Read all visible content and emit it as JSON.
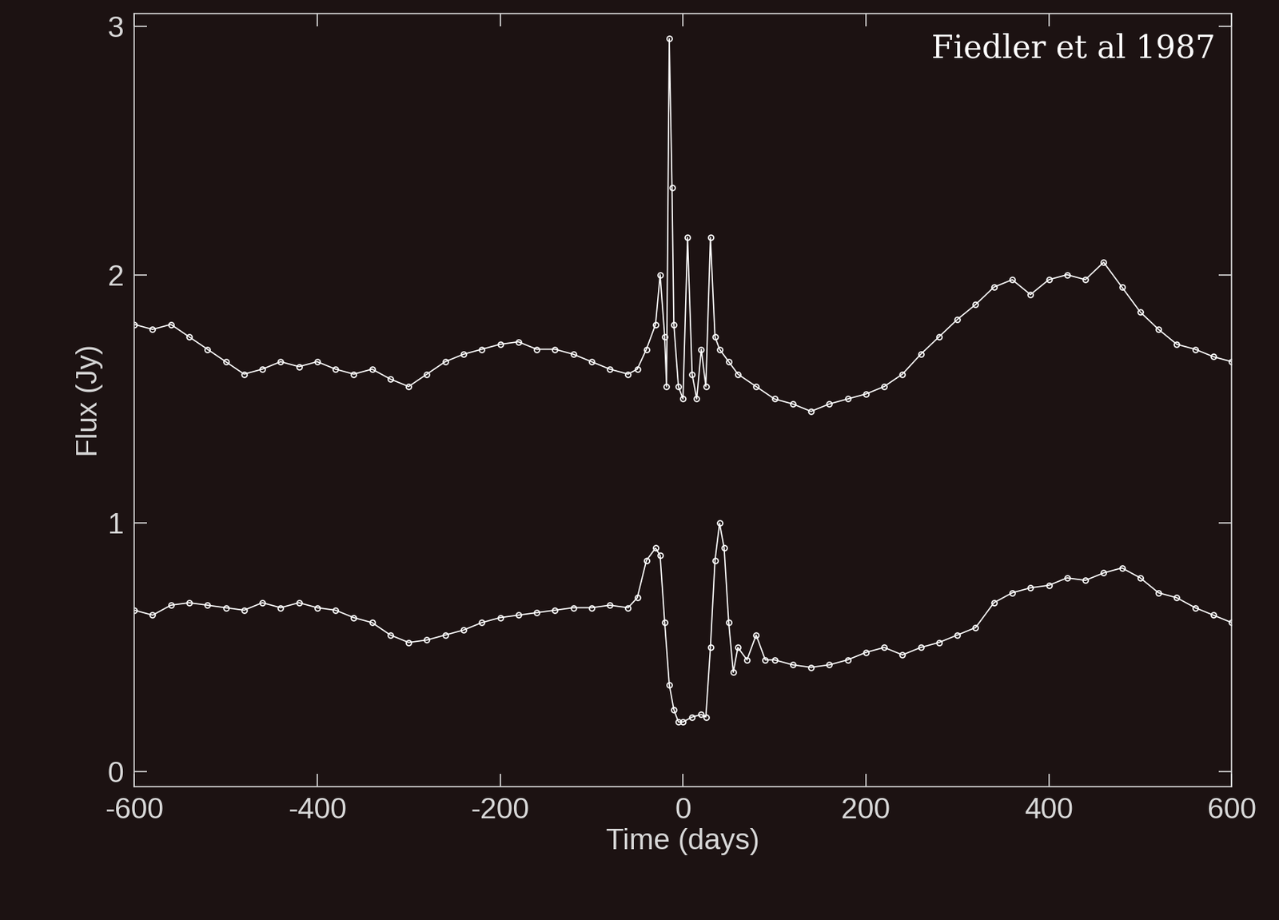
{
  "chart_data": {
    "type": "line",
    "annotation": "Fiedler et al 1987",
    "x_label": "Time (days)",
    "y_label": "Flux (Jy)",
    "xlim": [
      -600,
      600
    ],
    "ylim": [
      -0.06,
      3.05
    ],
    "xticks": [
      -600,
      -400,
      -200,
      0,
      200,
      400,
      600
    ],
    "yticks": [
      0,
      1,
      2,
      3
    ],
    "grid": false,
    "marker": "o",
    "line_style": "solid",
    "series": [
      {
        "color": "#ffffff",
        "x": [
          -600,
          -580,
          -560,
          -540,
          -520,
          -500,
          -480,
          -460,
          -440,
          -420,
          -400,
          -380,
          -360,
          -340,
          -320,
          -300,
          -280,
          -260,
          -240,
          -220,
          -200,
          -180,
          -160,
          -140,
          -120,
          -100,
          -80,
          -60,
          -50,
          -40,
          -30,
          -25,
          -20,
          -18,
          -15,
          -12,
          -10,
          -5,
          0,
          5,
          10,
          15,
          20,
          25,
          30,
          35,
          40,
          50,
          60,
          80,
          100,
          120,
          140,
          160,
          180,
          200,
          220,
          240,
          260,
          280,
          300,
          320,
          340,
          360,
          380,
          400,
          420,
          440,
          460,
          480,
          500,
          520,
          540,
          560,
          580,
          600
        ],
        "values": [
          1.8,
          1.78,
          1.8,
          1.75,
          1.7,
          1.65,
          1.6,
          1.62,
          1.65,
          1.63,
          1.65,
          1.62,
          1.6,
          1.62,
          1.58,
          1.55,
          1.6,
          1.65,
          1.68,
          1.7,
          1.72,
          1.73,
          1.7,
          1.7,
          1.68,
          1.65,
          1.62,
          1.6,
          1.62,
          1.7,
          1.8,
          2.0,
          1.75,
          1.55,
          2.95,
          2.35,
          1.8,
          1.55,
          1.5,
          2.15,
          1.6,
          1.5,
          1.7,
          1.55,
          2.15,
          1.75,
          1.7,
          1.65,
          1.6,
          1.55,
          1.5,
          1.48,
          1.45,
          1.48,
          1.5,
          1.52,
          1.55,
          1.6,
          1.68,
          1.75,
          1.82,
          1.88,
          1.95,
          1.98,
          1.92,
          1.98,
          2.0,
          1.98,
          2.05,
          1.95,
          1.85,
          1.78,
          1.72,
          1.7,
          1.67,
          1.65
        ]
      },
      {
        "color": "#ffffff",
        "x": [
          -600,
          -580,
          -560,
          -540,
          -520,
          -500,
          -480,
          -460,
          -440,
          -420,
          -400,
          -380,
          -360,
          -340,
          -320,
          -300,
          -280,
          -260,
          -240,
          -220,
          -200,
          -180,
          -160,
          -140,
          -120,
          -100,
          -80,
          -60,
          -50,
          -40,
          -30,
          -25,
          -20,
          -15,
          -10,
          -5,
          0,
          10,
          20,
          25,
          30,
          35,
          40,
          45,
          50,
          55,
          60,
          70,
          80,
          90,
          100,
          120,
          140,
          160,
          180,
          200,
          220,
          240,
          260,
          280,
          300,
          320,
          340,
          360,
          380,
          400,
          420,
          440,
          460,
          480,
          500,
          520,
          540,
          560,
          580,
          600
        ],
        "values": [
          0.65,
          0.63,
          0.67,
          0.68,
          0.67,
          0.66,
          0.65,
          0.68,
          0.66,
          0.68,
          0.66,
          0.65,
          0.62,
          0.6,
          0.55,
          0.52,
          0.53,
          0.55,
          0.57,
          0.6,
          0.62,
          0.63,
          0.64,
          0.65,
          0.66,
          0.66,
          0.67,
          0.66,
          0.7,
          0.85,
          0.9,
          0.87,
          0.6,
          0.35,
          0.25,
          0.2,
          0.2,
          0.22,
          0.23,
          0.22,
          0.5,
          0.85,
          1.0,
          0.9,
          0.6,
          0.4,
          0.5,
          0.45,
          0.55,
          0.45,
          0.45,
          0.43,
          0.42,
          0.43,
          0.45,
          0.48,
          0.5,
          0.47,
          0.5,
          0.52,
          0.55,
          0.58,
          0.68,
          0.72,
          0.74,
          0.75,
          0.78,
          0.77,
          0.8,
          0.82,
          0.78,
          0.72,
          0.7,
          0.66,
          0.63,
          0.6
        ]
      }
    ]
  }
}
